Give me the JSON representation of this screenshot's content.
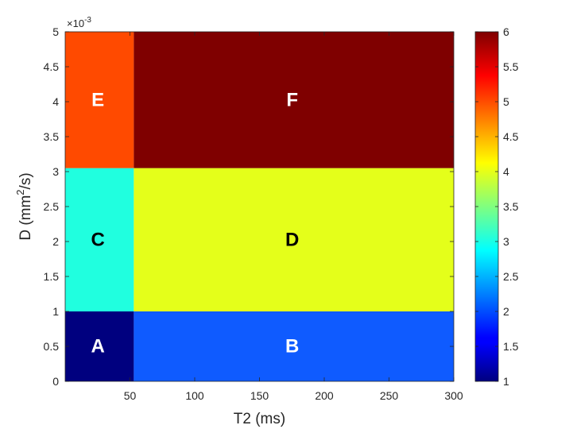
{
  "chart_data": {
    "type": "heatmap",
    "xlabel": "T2 (ms)",
    "ylabel": "D (mm²/s)",
    "ylabel_parts": {
      "pre": "D (mm",
      "sup": "2",
      "post": "/s)"
    },
    "y_multiplier": {
      "base": "×10",
      "exponent": "-3"
    },
    "xlim": [
      0,
      300
    ],
    "ylim": [
      0,
      5
    ],
    "x_ticks": [
      50,
      100,
      150,
      200,
      250,
      300
    ],
    "y_ticks": [
      0,
      0.5,
      1,
      1.5,
      2,
      2.5,
      3,
      3.5,
      4,
      4.5,
      5
    ],
    "colorbar": {
      "colormap": "jet",
      "range": [
        1,
        6
      ],
      "ticks": [
        1,
        1.5,
        2,
        2.5,
        3,
        3.5,
        4,
        4.5,
        5,
        5.5,
        6
      ]
    },
    "regions": [
      {
        "label": "A",
        "x": [
          0,
          53
        ],
        "y": [
          0,
          1
        ],
        "value": 1,
        "color": "#00007f",
        "label_color": "#ffffff"
      },
      {
        "label": "B",
        "x": [
          53,
          300
        ],
        "y": [
          0,
          1
        ],
        "value": 2,
        "color": "#0f5bff",
        "label_color": "#ffffff"
      },
      {
        "label": "C",
        "x": [
          0,
          53
        ],
        "y": [
          1,
          3.05
        ],
        "value": 3,
        "color": "#20ffdf",
        "label_color": "#000000"
      },
      {
        "label": "D",
        "x": [
          53,
          300
        ],
        "y": [
          1,
          3.05
        ],
        "value": 4,
        "color": "#e4ff1a",
        "label_color": "#000000"
      },
      {
        "label": "E",
        "x": [
          0,
          53
        ],
        "y": [
          3.05,
          5
        ],
        "value": 5,
        "color": "#ff4a00",
        "label_color": "#ffffff"
      },
      {
        "label": "F",
        "x": [
          53,
          300
        ],
        "y": [
          3.05,
          5
        ],
        "value": 6,
        "color": "#7f0000",
        "label_color": "#ffffff"
      }
    ]
  }
}
